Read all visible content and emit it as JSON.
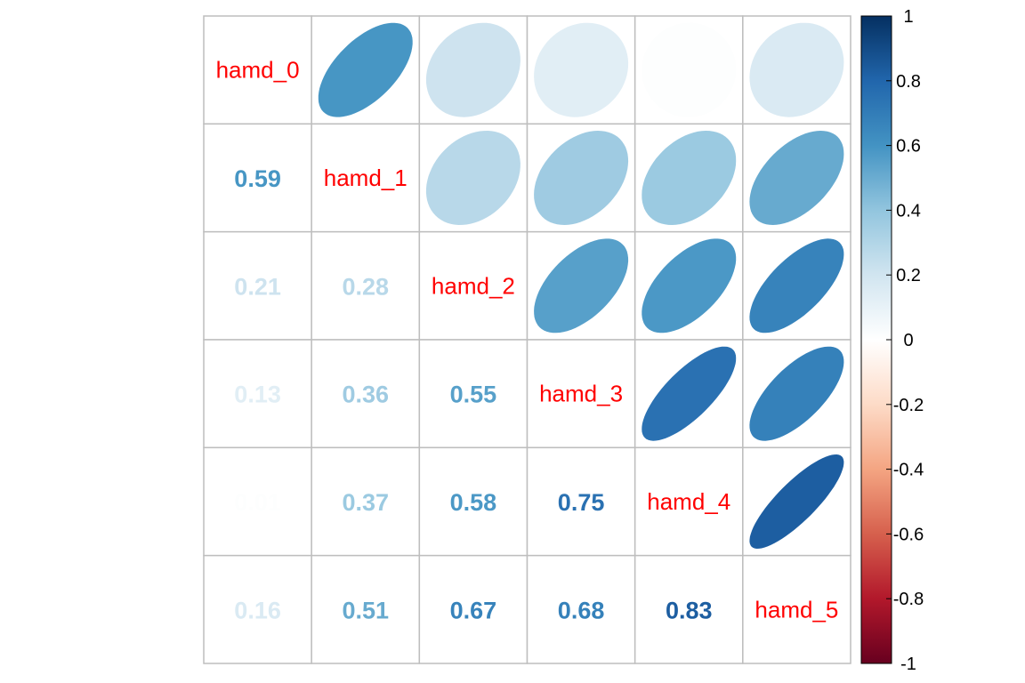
{
  "chart_data": {
    "type": "heatmap",
    "variables": [
      "hamd_0",
      "hamd_1",
      "hamd_2",
      "hamd_3",
      "hamd_4",
      "hamd_5"
    ],
    "matrix": [
      [
        1,
        0.59,
        0.21,
        0.13,
        0.01,
        0.16
      ],
      [
        0.59,
        1,
        0.28,
        0.36,
        0.37,
        0.51
      ],
      [
        0.21,
        0.28,
        1,
        0.55,
        0.58,
        0.67
      ],
      [
        0.13,
        0.36,
        0.55,
        1,
        0.75,
        0.68
      ],
      [
        0.01,
        0.37,
        0.58,
        0.75,
        1,
        0.83
      ],
      [
        0.16,
        0.51,
        0.67,
        0.68,
        0.83,
        1
      ]
    ],
    "upper": "ellipse",
    "lower": "number",
    "diagonal": "label",
    "colorbar": {
      "ticks": [
        "1",
        "0.8",
        "0.6",
        "0.4",
        "0.2",
        "0",
        "-0.2",
        "-0.4",
        "-0.6",
        "-0.8",
        "-1"
      ],
      "range": [
        -1,
        1
      ],
      "placement": "right",
      "palette": [
        "#67001F",
        "#B2182B",
        "#D6604D",
        "#F4A582",
        "#FDDBC7",
        "#FFFFFF",
        "#D1E5F0",
        "#92C5DE",
        "#4393C3",
        "#2166AC",
        "#053061"
      ]
    },
    "label_color": "#FF0000",
    "grid_color": "#BEBEBE"
  }
}
